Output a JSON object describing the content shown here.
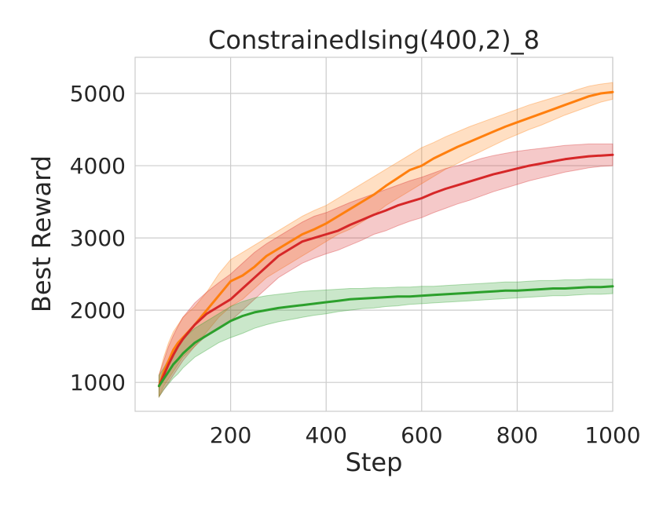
{
  "chart_data": {
    "type": "line",
    "title": "ConstrainedIsing(400,2)_8",
    "xlabel": "Step",
    "ylabel": "Best Reward",
    "xlim": [
      0,
      1000
    ],
    "ylim": [
      600,
      5500
    ],
    "xticks": [
      200,
      400,
      600,
      800,
      1000
    ],
    "yticks": [
      1000,
      2000,
      3000,
      4000,
      5000
    ],
    "grid": true,
    "colors": {
      "orange": "#ff7f0e",
      "red": "#d62728",
      "green": "#2ca02c"
    },
    "series": [
      {
        "color": "orange",
        "x": [
          50,
          60,
          70,
          80,
          90,
          100,
          125,
          150,
          175,
          200,
          225,
          250,
          275,
          300,
          325,
          350,
          375,
          400,
          425,
          450,
          475,
          500,
          525,
          550,
          575,
          600,
          625,
          650,
          675,
          700,
          725,
          750,
          775,
          800,
          825,
          850,
          875,
          900,
          925,
          950,
          975,
          1000
        ],
        "y": [
          950,
          1150,
          1300,
          1450,
          1550,
          1620,
          1800,
          2000,
          2200,
          2400,
          2480,
          2600,
          2750,
          2850,
          2950,
          3050,
          3120,
          3200,
          3300,
          3400,
          3500,
          3600,
          3720,
          3830,
          3940,
          4000,
          4100,
          4180,
          4260,
          4330,
          4400,
          4470,
          4540,
          4600,
          4660,
          4720,
          4780,
          4840,
          4900,
          4960,
          5000,
          5020
        ],
        "lower": [
          800,
          950,
          1050,
          1150,
          1250,
          1350,
          1500,
          1700,
          1900,
          2050,
          2150,
          2300,
          2450,
          2550,
          2650,
          2750,
          2850,
          2950,
          3050,
          3120,
          3220,
          3320,
          3450,
          3550,
          3650,
          3750,
          3850,
          3950,
          4030,
          4120,
          4200,
          4280,
          4360,
          4430,
          4500,
          4560,
          4630,
          4700,
          4760,
          4820,
          4880,
          4920
        ],
        "upper": [
          1100,
          1350,
          1550,
          1700,
          1800,
          1900,
          2050,
          2250,
          2500,
          2700,
          2800,
          2900,
          3000,
          3100,
          3200,
          3300,
          3380,
          3450,
          3550,
          3650,
          3750,
          3850,
          3950,
          4050,
          4150,
          4250,
          4320,
          4400,
          4470,
          4540,
          4600,
          4660,
          4720,
          4780,
          4840,
          4890,
          4940,
          4990,
          5050,
          5100,
          5130,
          5150
        ]
      },
      {
        "color": "red",
        "x": [
          50,
          60,
          70,
          80,
          90,
          100,
          125,
          150,
          175,
          200,
          225,
          250,
          275,
          300,
          325,
          350,
          375,
          400,
          425,
          450,
          475,
          500,
          525,
          550,
          575,
          600,
          625,
          650,
          675,
          700,
          725,
          750,
          775,
          800,
          825,
          850,
          875,
          900,
          925,
          950,
          975,
          1000
        ],
        "y": [
          950,
          1100,
          1250,
          1380,
          1500,
          1600,
          1800,
          1950,
          2050,
          2150,
          2300,
          2450,
          2600,
          2750,
          2850,
          2950,
          3000,
          3050,
          3100,
          3180,
          3250,
          3320,
          3380,
          3450,
          3500,
          3550,
          3620,
          3680,
          3730,
          3780,
          3830,
          3880,
          3920,
          3960,
          4000,
          4030,
          4060,
          4090,
          4110,
          4130,
          4140,
          4150
        ],
        "lower": [
          800,
          900,
          1000,
          1100,
          1200,
          1300,
          1500,
          1650,
          1750,
          1850,
          2000,
          2150,
          2300,
          2450,
          2550,
          2650,
          2720,
          2780,
          2830,
          2900,
          2970,
          3050,
          3100,
          3170,
          3230,
          3280,
          3350,
          3410,
          3470,
          3520,
          3580,
          3640,
          3690,
          3740,
          3790,
          3830,
          3870,
          3910,
          3940,
          3970,
          3990,
          4000
        ],
        "upper": [
          1100,
          1300,
          1500,
          1650,
          1780,
          1900,
          2100,
          2250,
          2380,
          2500,
          2650,
          2800,
          2920,
          3020,
          3120,
          3220,
          3300,
          3350,
          3420,
          3490,
          3550,
          3610,
          3670,
          3730,
          3790,
          3840,
          3900,
          3960,
          4000,
          4050,
          4100,
          4140,
          4170,
          4200,
          4220,
          4240,
          4260,
          4280,
          4290,
          4300,
          4300,
          4300
        ]
      },
      {
        "color": "green",
        "x": [
          50,
          60,
          70,
          80,
          90,
          100,
          125,
          150,
          175,
          200,
          225,
          250,
          275,
          300,
          325,
          350,
          375,
          400,
          425,
          450,
          475,
          500,
          525,
          550,
          575,
          600,
          625,
          650,
          675,
          700,
          725,
          750,
          775,
          800,
          825,
          850,
          875,
          900,
          925,
          950,
          975,
          1000
        ],
        "y": [
          950,
          1050,
          1150,
          1250,
          1320,
          1400,
          1550,
          1650,
          1750,
          1850,
          1920,
          1970,
          2000,
          2030,
          2050,
          2070,
          2090,
          2110,
          2130,
          2150,
          2160,
          2170,
          2180,
          2190,
          2190,
          2200,
          2210,
          2220,
          2230,
          2240,
          2250,
          2260,
          2270,
          2270,
          2280,
          2290,
          2300,
          2300,
          2310,
          2320,
          2320,
          2330
        ],
        "lower": [
          800,
          900,
          980,
          1060,
          1120,
          1200,
          1350,
          1450,
          1550,
          1620,
          1680,
          1750,
          1800,
          1840,
          1870,
          1900,
          1930,
          1950,
          1980,
          2000,
          2020,
          2030,
          2050,
          2060,
          2080,
          2090,
          2100,
          2110,
          2120,
          2130,
          2140,
          2150,
          2160,
          2170,
          2180,
          2190,
          2200,
          2200,
          2210,
          2220,
          2220,
          2230
        ],
        "upper": [
          1100,
          1200,
          1320,
          1450,
          1520,
          1600,
          1750,
          1850,
          1950,
          2050,
          2120,
          2170,
          2200,
          2220,
          2240,
          2260,
          2270,
          2280,
          2290,
          2300,
          2300,
          2310,
          2310,
          2320,
          2320,
          2330,
          2330,
          2340,
          2350,
          2360,
          2370,
          2380,
          2390,
          2390,
          2400,
          2410,
          2410,
          2420,
          2420,
          2430,
          2430,
          2430
        ]
      }
    ]
  }
}
